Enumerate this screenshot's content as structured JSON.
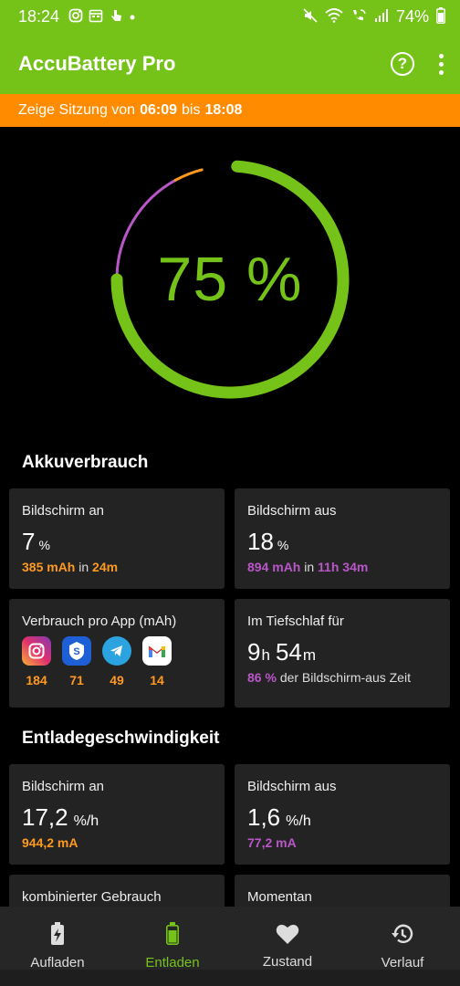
{
  "status_bar": {
    "time": "18:24",
    "battery": "74%",
    "icons_left": [
      "instagram-icon",
      "calendar-icon",
      "touch-icon",
      "dot-icon"
    ],
    "icons_right": [
      "mute-icon",
      "wifi-icon",
      "wifi-call-icon",
      "signal-icon"
    ]
  },
  "app_bar": {
    "title": "AccuBattery Pro",
    "help_icon": "?"
  },
  "session": {
    "prefix": "Zeige Sitzung von",
    "from": "06:09",
    "word": "bis",
    "to": "18:08"
  },
  "gauge": {
    "label": "75 %",
    "level": 0.75,
    "purple_fraction": 0.17,
    "orange_fraction": 0.04,
    "colors": {
      "green": "#75c319",
      "purple": "#b957c9",
      "orange": "#ff9a1f",
      "track": "#000000"
    }
  },
  "akkuverbrauch": {
    "title": "Akkuverbrauch",
    "screen_on": {
      "label": "Bildschirm an",
      "value": "7",
      "unit": "%",
      "mah": "385 mAh",
      "in_word": "in",
      "duration": "24m"
    },
    "screen_off": {
      "label": "Bildschirm aus",
      "value": "18",
      "unit": "%",
      "mah": "894 mAh",
      "in_word": "in",
      "duration": "11h 34m"
    },
    "per_app": {
      "label": "Verbrauch pro App (mAh)",
      "apps": [
        {
          "name": "instagram-icon",
          "value": "184",
          "color": "#d6249f"
        },
        {
          "name": "samsung-pass-icon",
          "value": "71",
          "color": "#1f5fd6"
        },
        {
          "name": "telegram-icon",
          "value": "49",
          "color": "#2aa3e0"
        },
        {
          "name": "gmail-icon",
          "value": "14",
          "color": "#ffffff"
        }
      ]
    },
    "deep_sleep": {
      "label": "Im Tiefschlaf für",
      "hours": "9",
      "h": "h",
      "minutes": "54",
      "m": "m",
      "percent": "86 %",
      "suffix": "der Bildschirm-aus Zeit"
    }
  },
  "entladegeschwindigkeit": {
    "title": "Entladegeschwindigkeit",
    "screen_on": {
      "label": "Bildschirm an",
      "value": "17,2",
      "unit": "%/h",
      "ma": "944,2 mA"
    },
    "screen_off": {
      "label": "Bildschirm aus",
      "value": "1,6",
      "unit": "%/h",
      "ma": "77,2 mA"
    },
    "combined": {
      "label": "kombinierter Gebrauch"
    },
    "current": {
      "label": "Momentan"
    }
  },
  "bottom_nav": [
    {
      "label": "Aufladen",
      "icon": "charging-battery-icon",
      "active": false
    },
    {
      "label": "Entladen",
      "icon": "battery-icon",
      "active": true
    },
    {
      "label": "Zustand",
      "icon": "heart-icon",
      "active": false
    },
    {
      "label": "Verlauf",
      "icon": "history-icon",
      "active": false
    }
  ]
}
